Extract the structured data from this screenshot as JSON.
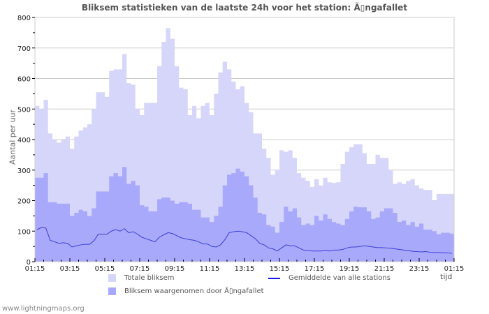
{
  "title": "Bliksem statistieken van de laatste 24h voor het station: Ã▯ngafallet",
  "y_axis_label": "Aantal per uur",
  "x_axis_unit": "tijd",
  "legend": {
    "total": "Totale bliksem",
    "station": "Bliksem waargenomen door Ã▯ngafallet",
    "average": "Gemiddelde van alle stations"
  },
  "footer": "www.lightningmaps.org",
  "colors": {
    "total": "#d6d6fb",
    "station": "#a9a9fb",
    "average": "#3c3cd6",
    "average_legend": "#1a1ae6",
    "grid": "#cccccc"
  },
  "chart_data": {
    "type": "area",
    "title": "Bliksem statistieken van de laatste 24h voor het station: Ã▯ngafallet",
    "xlabel": "tijd",
    "ylabel": "Aantal per uur",
    "ylim": [
      0,
      800
    ],
    "yticks": [
      0,
      100,
      200,
      300,
      400,
      500,
      600,
      700,
      800
    ],
    "xticks": [
      "01:15",
      "03:15",
      "05:15",
      "07:15",
      "09:15",
      "11:15",
      "13:15",
      "15:15",
      "17:15",
      "19:15",
      "21:15",
      "23:15",
      "01:15"
    ],
    "grid": true,
    "legend_position": "bottom",
    "x_hours_from_start": [
      0,
      0.25,
      0.5,
      0.75,
      1,
      1.25,
      1.5,
      1.75,
      2,
      2.25,
      2.5,
      2.75,
      3,
      3.25,
      3.5,
      3.75,
      4,
      4.25,
      4.5,
      4.75,
      5,
      5.25,
      5.5,
      5.75,
      6,
      6.25,
      6.5,
      6.75,
      7,
      7.25,
      7.5,
      7.75,
      8,
      8.25,
      8.5,
      8.75,
      9,
      9.25,
      9.5,
      9.75,
      10,
      10.25,
      10.5,
      10.75,
      11,
      11.25,
      11.5,
      11.75,
      12,
      12.25,
      12.5,
      12.75,
      13,
      13.25,
      13.5,
      13.75,
      14,
      14.25,
      14.5,
      14.75,
      15,
      15.25,
      15.5,
      15.75,
      16,
      16.25,
      16.5,
      16.75,
      17,
      17.25,
      17.5,
      17.75,
      18,
      18.25,
      18.5,
      18.75,
      19,
      19.25,
      19.5,
      19.75,
      20,
      20.25,
      20.5,
      20.75,
      21,
      21.25,
      21.5,
      21.75,
      22,
      22.25,
      22.5,
      22.75,
      23,
      23.25,
      23.5,
      23.75
    ],
    "series": [
      {
        "name": "Totale bliksem",
        "values": [
          510,
          500,
          530,
          420,
          400,
          390,
          400,
          410,
          370,
          410,
          430,
          440,
          450,
          500,
          555,
          555,
          540,
          625,
          630,
          630,
          680,
          585,
          580,
          500,
          480,
          520,
          520,
          520,
          640,
          720,
          765,
          730,
          640,
          570,
          565,
          480,
          510,
          470,
          510,
          520,
          480,
          550,
          620,
          655,
          630,
          590,
          565,
          575,
          520,
          490,
          420,
          420,
          370,
          340,
          285,
          300,
          365,
          360,
          365,
          340,
          290,
          275,
          265,
          245,
          270,
          250,
          275,
          260,
          258,
          260,
          320,
          360,
          375,
          385,
          385,
          355,
          320,
          320,
          350,
          340,
          340,
          300,
          255,
          260,
          255,
          265,
          270,
          250,
          240,
          235,
          235,
          200,
          222,
          222,
          222,
          222
        ]
      },
      {
        "name": "Bliksem waargenomen door Ã▯ngafallet",
        "values": [
          275,
          275,
          290,
          195,
          195,
          190,
          190,
          190,
          150,
          160,
          170,
          165,
          150,
          175,
          230,
          230,
          230,
          280,
          290,
          280,
          310,
          255,
          265,
          250,
          185,
          180,
          165,
          165,
          205,
          210,
          210,
          200,
          190,
          195,
          195,
          190,
          170,
          170,
          145,
          145,
          130,
          150,
          180,
          250,
          285,
          290,
          305,
          295,
          280,
          250,
          210,
          160,
          155,
          120,
          115,
          95,
          130,
          180,
          165,
          175,
          145,
          120,
          125,
          120,
          150,
          135,
          155,
          140,
          130,
          125,
          120,
          140,
          165,
          180,
          178,
          178,
          165,
          140,
          145,
          165,
          175,
          175,
          160,
          130,
          135,
          120,
          130,
          115,
          125,
          105,
          105,
          100,
          90,
          95,
          95,
          92
        ]
      },
      {
        "name": "Gemiddelde van alle stations",
        "values": [
          105,
          112,
          110,
          70,
          65,
          60,
          62,
          60,
          48,
          52,
          55,
          57,
          57,
          68,
          90,
          90,
          90,
          100,
          105,
          100,
          108,
          95,
          98,
          90,
          80,
          75,
          70,
          65,
          80,
          88,
          95,
          92,
          85,
          78,
          75,
          72,
          70,
          65,
          58,
          58,
          50,
          48,
          55,
          72,
          95,
          98,
          100,
          98,
          95,
          85,
          75,
          60,
          55,
          45,
          42,
          35,
          45,
          55,
          52,
          52,
          45,
          38,
          37,
          35,
          35,
          35,
          37,
          35,
          38,
          38,
          40,
          45,
          48,
          48,
          50,
          52,
          50,
          48,
          46,
          46,
          45,
          44,
          42,
          40,
          38,
          36,
          34,
          33,
          32,
          33,
          31,
          30,
          30,
          29,
          29,
          27
        ]
      }
    ]
  }
}
